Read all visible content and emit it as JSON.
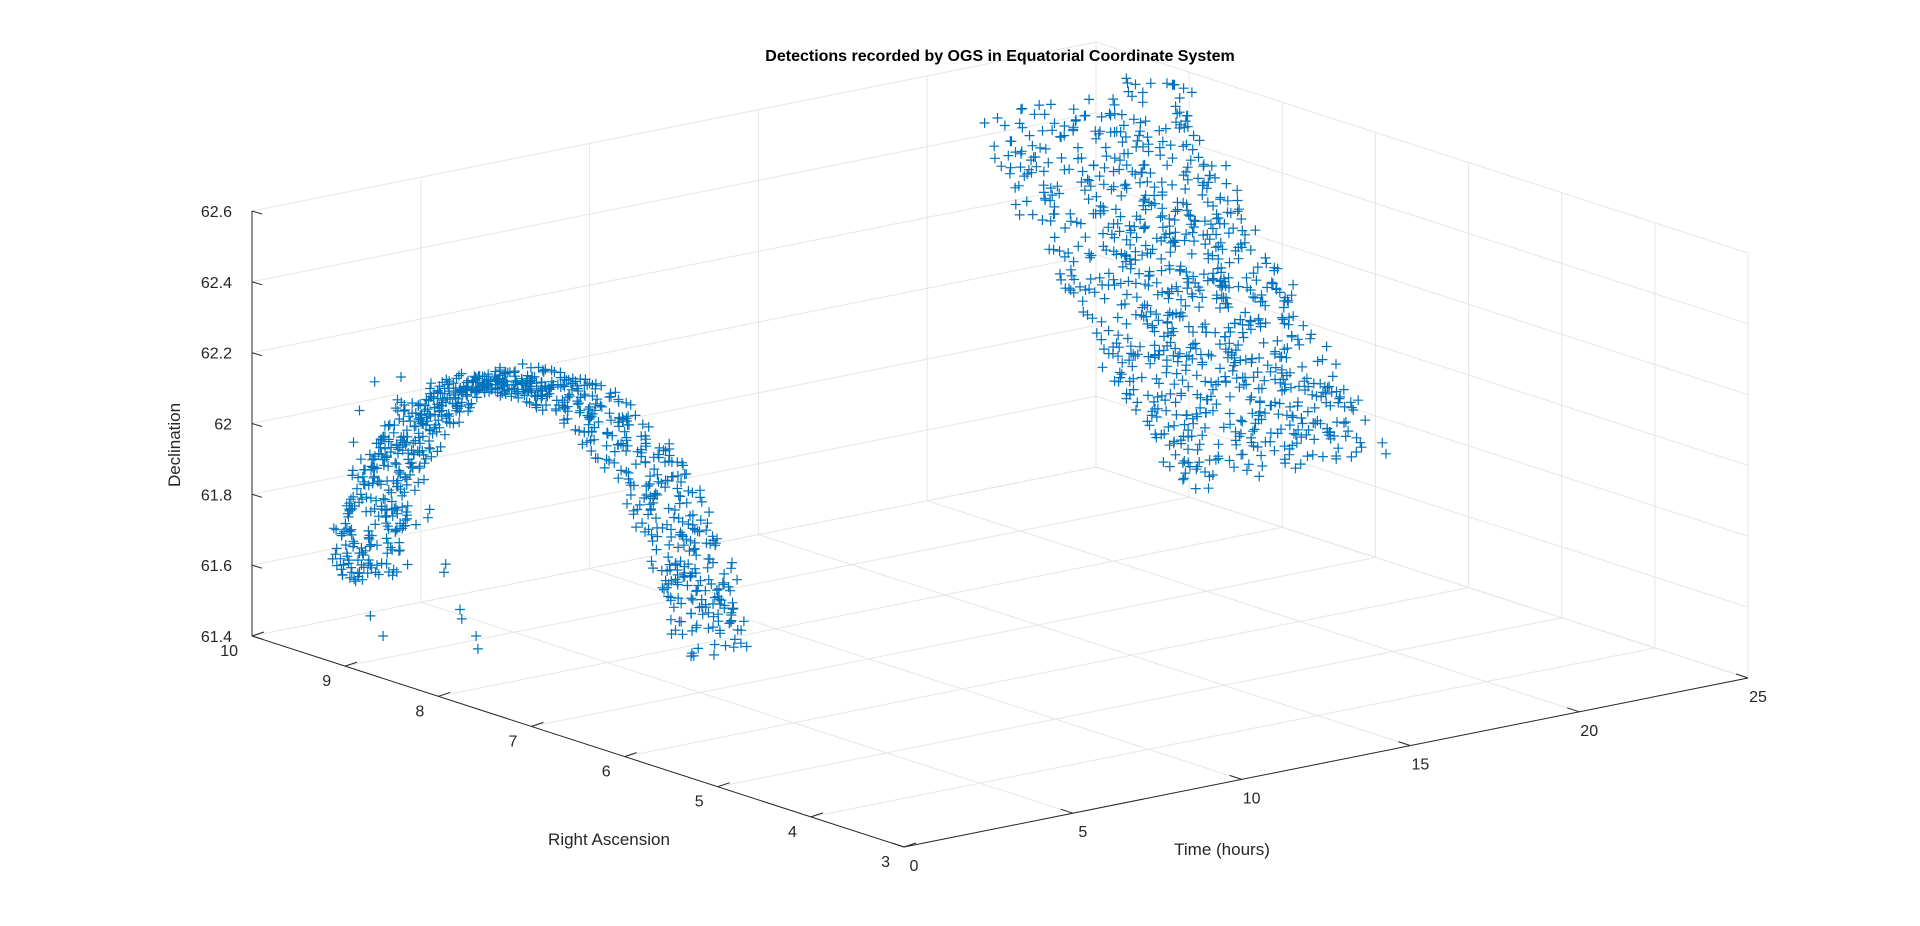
{
  "chart_data": {
    "type": "scatter",
    "projection": "3d",
    "title": "Detections recorded by OGS in Equatorial Coordinate System",
    "xlabel": "Time (hours)",
    "ylabel": "Right Ascension",
    "zlabel": "Declination",
    "xlim": [
      0,
      25
    ],
    "ylim": [
      3,
      10
    ],
    "zlim": [
      61.4,
      62.6
    ],
    "x_ticks": [
      "0",
      "5",
      "10",
      "15",
      "20",
      "25"
    ],
    "y_ticks": [
      "3",
      "4",
      "5",
      "6",
      "7",
      "8",
      "9",
      "10"
    ],
    "z_ticks": [
      "61.4",
      "61.6",
      "61.8",
      "62",
      "62.2",
      "62.4",
      "62.6"
    ],
    "grid": true,
    "marker": "+",
    "color": "#0072BD",
    "series": [
      {
        "clusters": [
          {
            "note_ranges": "left arc",
            "time_range": [
              0.5,
              2.6
            ],
            "ra_range": [
              5.6,
              9.3
            ],
            "dec_range": [
              61.45,
              62.3
            ]
          },
          {
            "note_ranges": "right arc",
            "time_range": [
              18.5,
              24.5
            ],
            "ra_range": [
              6.7,
              8.9
            ],
            "dec_range": [
              61.75,
              62.62
            ]
          }
        ],
        "points": [
          [
            0.55,
            8.6,
            62.24
          ],
          [
            0.6,
            8.1,
            62.27
          ],
          [
            0.65,
            7.6,
            62.28
          ],
          [
            0.7,
            7.2,
            62.27
          ],
          [
            0.75,
            6.8,
            62.24
          ],
          [
            0.8,
            6.4,
            62.18
          ],
          [
            0.85,
            6.0,
            62.1
          ],
          [
            0.9,
            5.7,
            62.03
          ],
          [
            0.95,
            5.6,
            62.0
          ],
          [
            0.6,
            8.9,
            62.2
          ],
          [
            0.7,
            9.1,
            62.1
          ],
          [
            0.8,
            9.2,
            62.0
          ],
          [
            0.9,
            9.25,
            61.9
          ],
          [
            1.0,
            9.3,
            61.8
          ],
          [
            1.1,
            9.3,
            61.7
          ],
          [
            1.2,
            9.25,
            61.6
          ],
          [
            1.3,
            9.2,
            61.5
          ],
          [
            1.4,
            9.1,
            61.45
          ],
          [
            1.0,
            8.8,
            62.15
          ],
          [
            1.2,
            8.7,
            62.0
          ],
          [
            1.4,
            8.6,
            61.85
          ],
          [
            1.6,
            8.5,
            61.7
          ],
          [
            1.8,
            8.4,
            61.55
          ],
          [
            2.0,
            8.3,
            61.47
          ],
          [
            1.5,
            9.0,
            62.1
          ],
          [
            1.7,
            8.9,
            61.95
          ],
          [
            1.9,
            8.8,
            61.8
          ],
          [
            2.1,
            8.7,
            61.65
          ],
          [
            2.3,
            8.6,
            61.55
          ],
          [
            2.5,
            8.5,
            61.48
          ],
          [
            18.6,
            8.5,
            62.62
          ],
          [
            19.0,
            8.4,
            62.6
          ],
          [
            19.5,
            8.2,
            62.56
          ],
          [
            20.0,
            8.0,
            62.5
          ],
          [
            20.5,
            7.8,
            62.42
          ],
          [
            21.0,
            7.6,
            62.32
          ],
          [
            21.5,
            7.4,
            62.2
          ],
          [
            22.0,
            7.25,
            62.08
          ],
          [
            22.5,
            7.1,
            61.96
          ],
          [
            23.0,
            7.0,
            61.85
          ],
          [
            23.5,
            6.9,
            61.78
          ],
          [
            24.0,
            6.8,
            61.76
          ],
          [
            20.2,
            8.6,
            62.45
          ],
          [
            20.8,
            8.4,
            62.35
          ],
          [
            21.4,
            8.2,
            62.22
          ],
          [
            22.0,
            8.0,
            62.1
          ],
          [
            22.6,
            7.8,
            61.98
          ],
          [
            23.2,
            7.6,
            61.86
          ],
          [
            23.8,
            7.45,
            61.78
          ],
          [
            24.4,
            7.3,
            61.75
          ]
        ]
      }
    ]
  }
}
